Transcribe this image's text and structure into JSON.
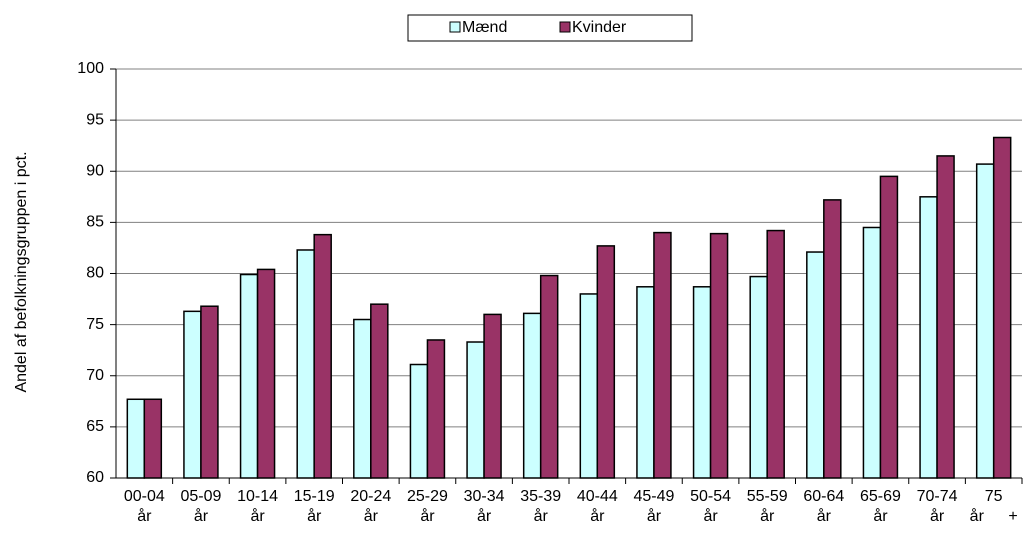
{
  "chart_data": {
    "type": "bar",
    "y_label": "Andel af befolkningsgruppen i pct.",
    "categories": [
      "00-04 år",
      "05-09 år",
      "10-14 år",
      "15-19 år",
      "20-24 år",
      "25-29 år",
      "30-34 år",
      "35-39 år",
      "40-44 år",
      "45-49 år",
      "50-54 år",
      "55-59 år",
      "60-64 år",
      "65-69 år",
      "70-74 år",
      "75 år +"
    ],
    "series": [
      {
        "name": "Mænd",
        "color": "#ccffff",
        "values": [
          67.7,
          76.3,
          79.9,
          82.3,
          75.5,
          71.1,
          73.3,
          76.1,
          78.0,
          78.7,
          78.7,
          79.7,
          82.1,
          84.5,
          87.5,
          90.7
        ]
      },
      {
        "name": "Kvinder",
        "color": "#993366",
        "values": [
          67.7,
          76.8,
          80.4,
          83.8,
          77.0,
          73.5,
          76.0,
          79.8,
          82.7,
          84.0,
          83.9,
          84.2,
          87.2,
          89.5,
          91.5,
          93.3
        ]
      }
    ],
    "ylim": [
      60,
      100
    ],
    "yticks": [
      60,
      65,
      70,
      75,
      80,
      85,
      90,
      95,
      100
    ],
    "grid": true,
    "legend": "top"
  }
}
